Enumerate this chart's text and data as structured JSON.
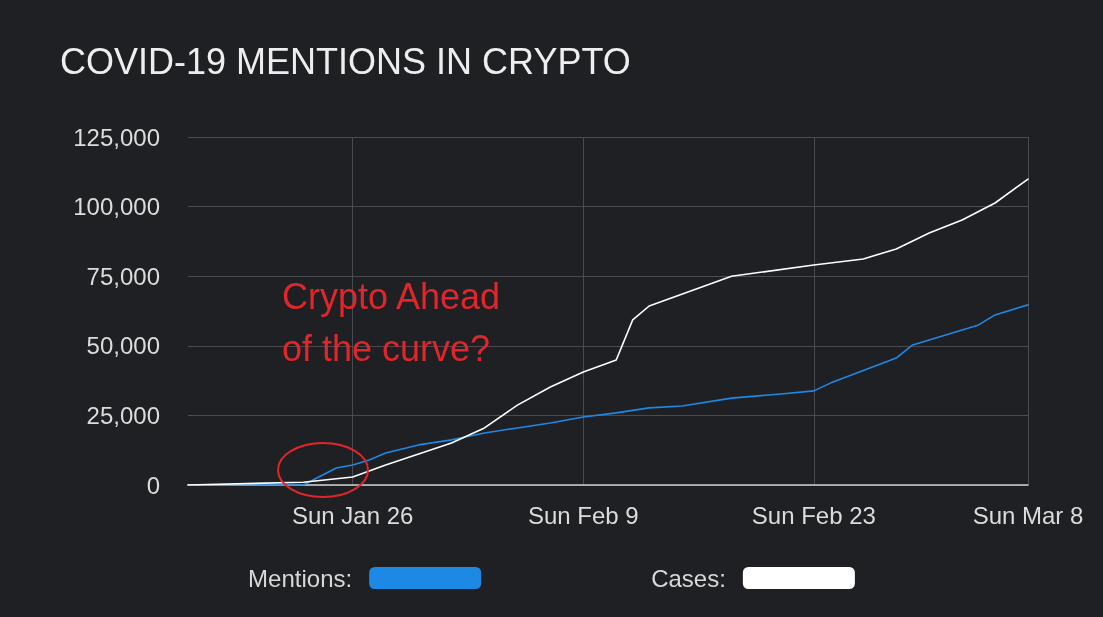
{
  "chart_data": {
    "type": "line",
    "title": "COVID-19 MENTIONS IN CRYPTO",
    "xlim": [
      "--01-16",
      "--03-08"
    ],
    "xticks": [
      {
        "value": "--01-26",
        "label": "Sun Jan 26"
      },
      {
        "value": "--02-09",
        "label": "Sun Feb 9"
      },
      {
        "value": "--02-23",
        "label": "Sun Feb 23"
      },
      {
        "value": "--03-08",
        "label": "Sun Mar 8"
      }
    ],
    "ylim": [
      0,
      125000
    ],
    "yticks": [
      {
        "value": 0,
        "label": "0"
      },
      {
        "value": 25000,
        "label": "25,000"
      },
      {
        "value": 50000,
        "label": "50,000"
      },
      {
        "value": 75000,
        "label": "75,000"
      },
      {
        "value": 100000,
        "label": "100,000"
      },
      {
        "value": 125000,
        "label": "125,000"
      }
    ],
    "grid": true,
    "legend": "bottom",
    "marker": "none",
    "annotations": [
      "Crypto Ahead of the curve?"
    ],
    "series": [
      {
        "name": "Mentions:",
        "color": "#1e88e5",
        "x": [
          "--01-16",
          "--01-23",
          "--01-25",
          "--01-26",
          "--01-27",
          "--01-28",
          "--01-30",
          "--02-01",
          "--02-03",
          "--02-05",
          "--02-07",
          "--02-09",
          "--02-11",
          "--02-13",
          "--02-15",
          "--02-18",
          "--02-21",
          "--02-23",
          "--02-24",
          "--02-28",
          "--03-01",
          "--03-05",
          "--03-06",
          "--03-08"
        ],
        "values": [
          0,
          0,
          6100,
          7200,
          9000,
          11500,
          14400,
          16200,
          18700,
          20500,
          22300,
          24400,
          25900,
          27700,
          28400,
          31200,
          32700,
          33800,
          36600,
          45600,
          50300,
          57500,
          61100,
          64700
        ]
      },
      {
        "name": "Cases:",
        "color": "#ffffff",
        "x": [
          "--01-16",
          "--01-23",
          "--01-26",
          "--01-28",
          "--02-01",
          "--02-03",
          "--02-05",
          "--02-07",
          "--02-09",
          "--02-11",
          "--02-12",
          "--02-13",
          "--02-18",
          "--02-23",
          "--02-26",
          "--02-28",
          "--03-02",
          "--03-04",
          "--03-06",
          "--03-08"
        ],
        "values": [
          0,
          1000,
          2900,
          7200,
          15100,
          20500,
          28700,
          35200,
          40600,
          44900,
          59300,
          64300,
          75000,
          79000,
          81200,
          84800,
          90500,
          95200,
          101300,
          109900
        ]
      }
    ]
  }
}
